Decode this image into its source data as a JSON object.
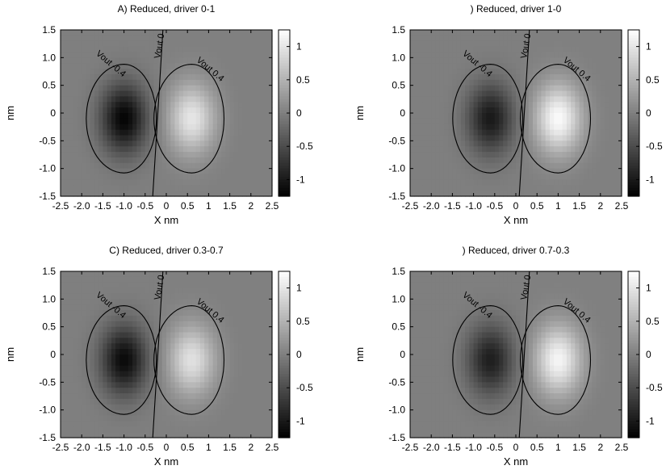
{
  "chart_data": [
    {
      "type": "heatmap",
      "title": "A) Reduced, driver 0-1",
      "xlabel": "X  nm",
      "ylabel": "nm",
      "xlim": [
        -2.5,
        2.5
      ],
      "ylim": [
        -1.5,
        1.5
      ],
      "x_ticks": [
        "-2.5",
        "-2.0",
        "-1.5",
        "-1.0",
        "-0.5",
        "0",
        "0.5",
        "1",
        "1.5",
        "2",
        "2.5"
      ],
      "y_ticks": [
        "1.5",
        "1.0",
        "0.5",
        "0",
        "-0.5",
        "-1.0",
        "-1.5"
      ],
      "colorbar": {
        "range": [
          -1.25,
          1.25
        ],
        "ticks": [
          "1",
          "0.5",
          "0",
          "-0.5",
          "-1"
        ]
      },
      "negative_lobe": {
        "center": [
          -1.0,
          -0.1
        ],
        "peak": -1.2
      },
      "positive_lobe": {
        "center": [
          0.6,
          -0.1
        ],
        "peak": 1.0
      },
      "contours": [
        {
          "label": "Vout -0.4",
          "level": -0.4
        },
        {
          "label": "Vout 0",
          "level": 0
        },
        {
          "label": "Vout  0.4",
          "level": 0.4
        }
      ]
    },
    {
      "type": "heatmap",
      "title": ") Reduced, driver 1-0",
      "xlabel": "X  nm",
      "ylabel": "nm",
      "xlim": [
        -2.5,
        2.5
      ],
      "ylim": [
        -1.5,
        1.5
      ],
      "x_ticks": [
        "-2.5",
        "-2.0",
        "-1.5",
        "-1.0",
        "-0.5",
        "0",
        "0.5",
        "1",
        "1.5",
        "2",
        "2.5"
      ],
      "y_ticks": [
        "1.5",
        "1.0",
        "0.5",
        "0",
        "-0.5",
        "-1.0",
        "-1.5"
      ],
      "colorbar": {
        "range": [
          -1.25,
          1.25
        ],
        "ticks": [
          "1",
          "0.5",
          "0",
          "-0.5",
          "-1"
        ]
      },
      "negative_lobe": {
        "center": [
          -0.6,
          -0.1
        ],
        "peak": -1.0
      },
      "positive_lobe": {
        "center": [
          1.0,
          -0.1
        ],
        "peak": 1.2
      },
      "contours": [
        {
          "label": "Vout -0.4",
          "level": -0.4
        },
        {
          "label": "Vout 0",
          "level": 0
        },
        {
          "label": "Vout  0.4",
          "level": 0.4
        }
      ]
    },
    {
      "type": "heatmap",
      "title": "C) Reduced, driver 0.3-0.7",
      "xlabel": "X  nm",
      "ylabel": "nm",
      "xlim": [
        -2.5,
        2.5
      ],
      "ylim": [
        -1.5,
        1.5
      ],
      "x_ticks": [
        "-2.5",
        "-2.0",
        "-1.5",
        "-1.0",
        "-0.5",
        "0",
        "0.5",
        "1",
        "1.5",
        "2",
        "2.5"
      ],
      "y_ticks": [
        "1.5",
        "1.0",
        "0.5",
        "0",
        "-0.5",
        "-1.0",
        "-1.5"
      ],
      "colorbar": {
        "range": [
          -1.25,
          1.25
        ],
        "ticks": [
          "1",
          "0.5",
          "0",
          "-0.5",
          "-1"
        ]
      },
      "negative_lobe": {
        "center": [
          -1.0,
          -0.1
        ],
        "peak": -1.15
      },
      "positive_lobe": {
        "center": [
          0.6,
          -0.1
        ],
        "peak": 0.95
      },
      "contours": [
        {
          "label": "Vout -0.4",
          "level": -0.4
        },
        {
          "label": "Vout 0",
          "level": 0
        },
        {
          "label": "Vout  0.4",
          "level": 0.4
        }
      ]
    },
    {
      "type": "heatmap",
      "title": ") Reduced, driver 0.7-0.3",
      "xlabel": "X  nm",
      "ylabel": "nm",
      "xlim": [
        -2.5,
        2.5
      ],
      "ylim": [
        -1.5,
        1.5
      ],
      "x_ticks": [
        "-2.5",
        "-2.0",
        "-1.5",
        "-1.0",
        "-0.5",
        "0",
        "0.5",
        "1",
        "1.5",
        "2",
        "2.5"
      ],
      "y_ticks": [
        "1.5",
        "1.0",
        "0.5",
        "0",
        "-0.5",
        "-1.0",
        "-1.5"
      ],
      "colorbar": {
        "range": [
          -1.25,
          1.25
        ],
        "ticks": [
          "1",
          "0.5",
          "0",
          "-0.5",
          "-1"
        ]
      },
      "negative_lobe": {
        "center": [
          -0.6,
          -0.1
        ],
        "peak": -0.95
      },
      "positive_lobe": {
        "center": [
          1.0,
          -0.1
        ],
        "peak": 1.15
      },
      "contours": [
        {
          "label": "Vout -0.4",
          "level": -0.4
        },
        {
          "label": "Vout 0",
          "level": 0
        },
        {
          "label": "Vout  0.4",
          "level": 0.4
        }
      ]
    }
  ]
}
